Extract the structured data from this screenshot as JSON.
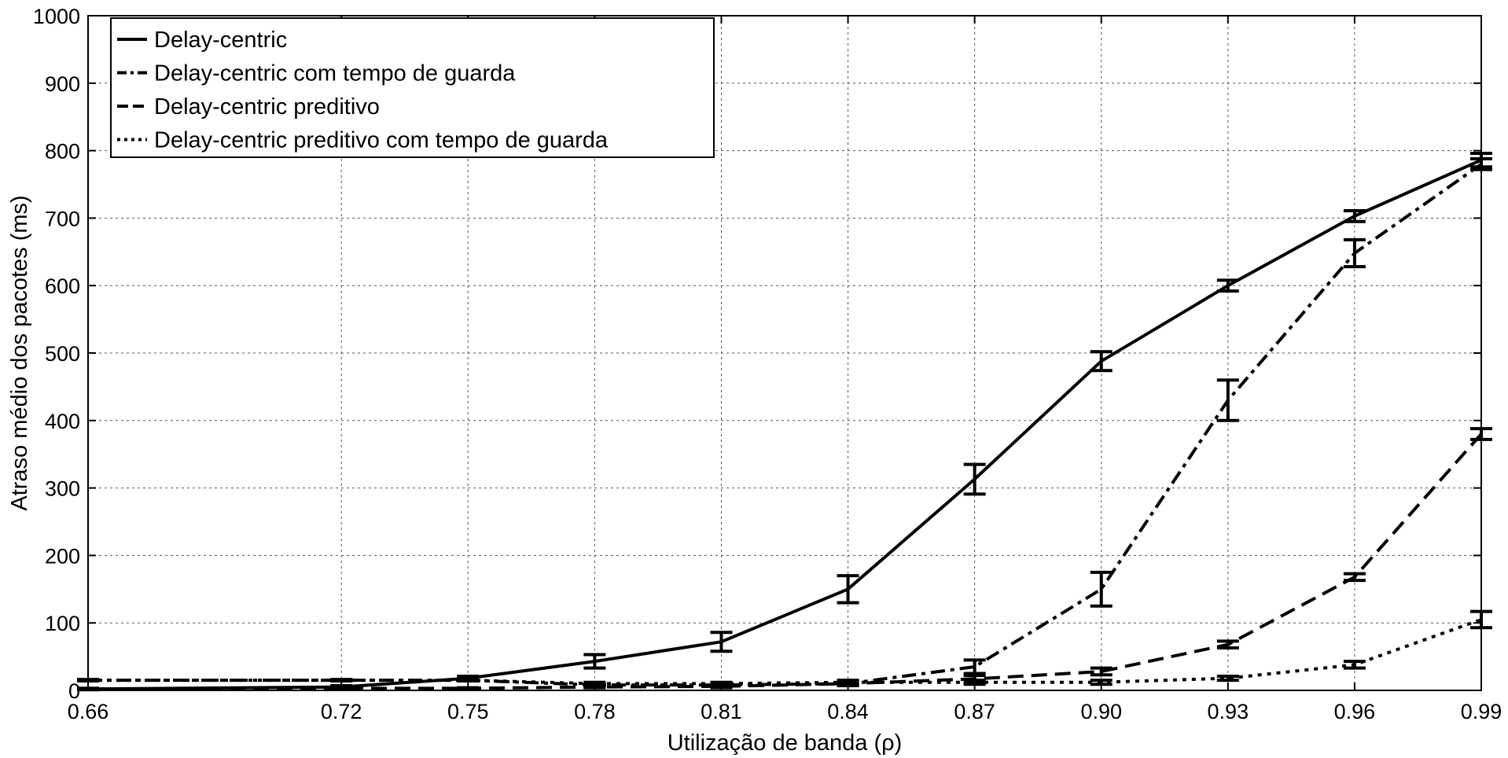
{
  "chart_data": {
    "type": "line",
    "title": "",
    "xlabel": "Utilização de banda (ρ)",
    "ylabel": "Atraso médio dos pacotes (ms)",
    "xlim": [
      0.66,
      0.99
    ],
    "ylim": [
      0,
      1000
    ],
    "x_ticks": [
      0.66,
      0.72,
      0.75,
      0.78,
      0.81,
      0.84,
      0.87,
      0.9,
      0.93,
      0.96,
      0.99
    ],
    "x_tick_labels": [
      "0.66",
      "0.72",
      "0.75",
      "0.78",
      "0.81",
      "0.84",
      "0.87",
      "0.90",
      "0.93",
      "0.96",
      "0.99"
    ],
    "y_ticks": [
      0,
      100,
      200,
      300,
      400,
      500,
      600,
      700,
      800,
      900,
      1000
    ],
    "y_tick_labels": [
      "0",
      "100",
      "200",
      "300",
      "400",
      "500",
      "600",
      "700",
      "800",
      "900",
      "1000"
    ],
    "grid": true,
    "legend_position": "top-left",
    "series": [
      {
        "name": "Delay-centric",
        "style": "solid",
        "color": "#000000",
        "x": [
          0.66,
          0.72,
          0.75,
          0.78,
          0.81,
          0.84,
          0.87,
          0.9,
          0.93,
          0.96,
          0.99
        ],
        "y": [
          2,
          5,
          18,
          43,
          72,
          150,
          313,
          488,
          600,
          703,
          786
        ],
        "error": [
          1,
          2,
          3,
          10,
          14,
          20,
          22,
          14,
          8,
          8,
          10
        ]
      },
      {
        "name": "Delay-centric com tempo de guarda",
        "style": "dashdot",
        "color": "#000000",
        "x": [
          0.66,
          0.72,
          0.75,
          0.78,
          0.81,
          0.84,
          0.87,
          0.9,
          0.93,
          0.96,
          0.99
        ],
        "y": [
          15,
          15,
          15,
          8,
          8,
          10,
          35,
          150,
          430,
          648,
          780
        ],
        "error": [
          1,
          1,
          1,
          2,
          2,
          3,
          10,
          25,
          30,
          20,
          8
        ]
      },
      {
        "name": "Delay-centric preditivo",
        "style": "dashed",
        "color": "#000000",
        "x": [
          0.66,
          0.72,
          0.75,
          0.78,
          0.81,
          0.84,
          0.87,
          0.9,
          0.93,
          0.96,
          0.99
        ],
        "y": [
          2,
          3,
          3,
          5,
          6,
          10,
          17,
          28,
          68,
          168,
          380
        ],
        "error": [
          1,
          1,
          1,
          1,
          2,
          2,
          5,
          5,
          5,
          5,
          8
        ]
      },
      {
        "name": "Delay-centric preditivo com tempo de guarda",
        "style": "dotted",
        "color": "#000000",
        "x": [
          0.66,
          0.72,
          0.75,
          0.78,
          0.81,
          0.84,
          0.87,
          0.9,
          0.93,
          0.96,
          0.99
        ],
        "y": [
          15,
          15,
          15,
          10,
          10,
          12,
          12,
          12,
          18,
          38,
          105
        ],
        "error": [
          1,
          1,
          1,
          2,
          2,
          3,
          3,
          3,
          3,
          5,
          12
        ]
      }
    ]
  }
}
